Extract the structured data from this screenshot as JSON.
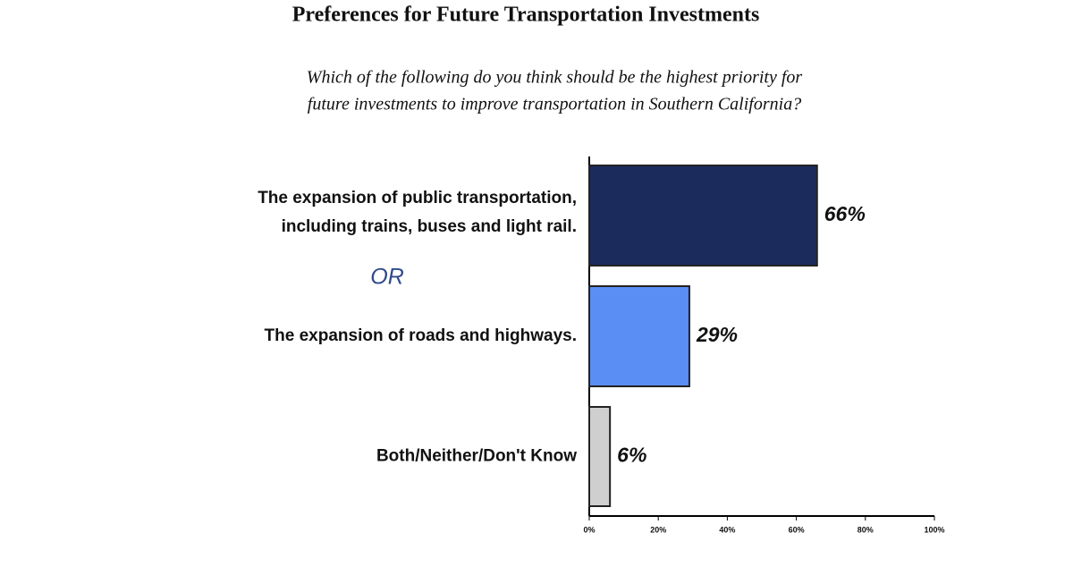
{
  "chart_data": {
    "type": "barh",
    "title": "Preferences for Future Transportation Investments",
    "subtitle": [
      "Which of the following do you think should be the highest priority for",
      "future investments to improve transportation in Southern California?"
    ],
    "annotation": "OR",
    "categories": [
      "The expansion of public transportation,\nincluding trains, buses and light rail.",
      "The expansion of roads and highways.",
      "Both/Neither/Don't Know"
    ],
    "values": [
      66,
      29,
      6
    ],
    "value_labels": [
      "66%",
      "29%",
      "6%"
    ],
    "colors": [
      "#1b2b5c",
      "#5b8ef5",
      "#cfcfcf"
    ],
    "xlim": [
      0,
      100
    ],
    "xticks": [
      {
        "value": 0,
        "label": "0%"
      },
      {
        "value": 20,
        "label": "20%"
      },
      {
        "value": 40,
        "label": "40%"
      },
      {
        "value": 60,
        "label": "60%"
      },
      {
        "value": 80,
        "label": "80%"
      },
      {
        "value": 100,
        "label": "100%"
      }
    ]
  }
}
